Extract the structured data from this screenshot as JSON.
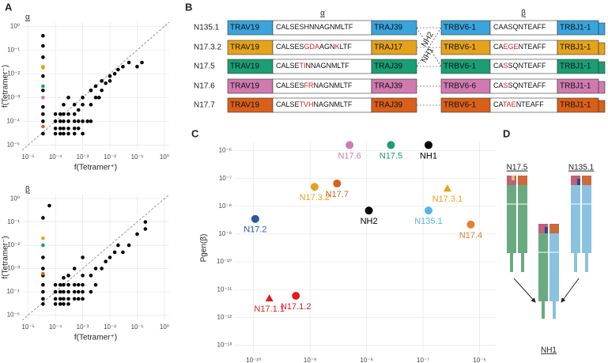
{
  "panel_labels": [
    "A",
    "B",
    "C",
    "D"
  ],
  "chart_data": [
    {
      "type": "scatter",
      "facet": "α",
      "xscale": "log",
      "yscale": "log",
      "x_label": "f(Tetramer⁺)",
      "y_label": "f(Tetramer⁻)",
      "reference_line": "y=x",
      "grid": true,
      "xlim": [
        6e-06,
        1.5
      ],
      "ylim": [
        6e-06,
        1.5
      ],
      "xticks": [
        {
          "value": 1e-05,
          "label": "10⁻⁵"
        },
        {
          "value": 0.0001,
          "label": "10⁻⁴"
        },
        {
          "value": 0.001,
          "label": "10⁻³"
        },
        {
          "value": 0.01,
          "label": "10⁻²"
        },
        {
          "value": 0.1,
          "label": "10⁻¹"
        },
        {
          "value": 1,
          "label": "10⁰"
        }
      ],
      "yticks": [
        {
          "value": 1e-05,
          "label": "10⁻⁵"
        },
        {
          "value": 0.0001,
          "label": "10⁻⁴"
        },
        {
          "value": 0.001,
          "label": "10⁻³"
        },
        {
          "value": 0.01,
          "label": "10⁻²"
        },
        {
          "value": 0.1,
          "label": "10⁻¹"
        },
        {
          "value": 1,
          "label": "10⁰"
        }
      ],
      "series": [
        {
          "color": "#000000",
          "x": [
            3.5e-05,
            3.5e-05,
            3.5e-05,
            3.5e-05,
            3.5e-05,
            3.5e-05,
            3.5e-05,
            3.5e-05,
            3.5e-05,
            0.0001,
            0.0001,
            0.0001,
            0.0001,
            0.00015,
            0.00015,
            0.00015,
            0.00015,
            0.0002,
            0.0002,
            0.0002,
            0.0002,
            0.0002,
            0.0003,
            0.0003,
            0.0003,
            0.0003,
            0.0003,
            0.0005,
            0.0005,
            0.0005,
            0.0005,
            0.0005,
            0.0007,
            0.0007,
            0.0007,
            0.001,
            0.001,
            0.001,
            0.001,
            0.0015,
            0.002,
            0.002,
            0.003,
            0.003,
            0.005,
            0.005,
            0.007,
            0.01,
            0.01,
            0.015,
            0.02,
            0.03,
            0.05,
            0.1,
            0.15,
            0.002,
            0.004
          ],
          "values": [
            0.4,
            0.15,
            0.05,
            0.008,
            0.002,
            0.0004,
            0.0002,
            0.0001,
            3e-05,
            3e-05,
            5e-05,
            0.0001,
            0.0002,
            3e-05,
            5e-05,
            0.0001,
            0.0002,
            3e-05,
            5e-05,
            0.0001,
            0.0002,
            0.0005,
            3e-05,
            5e-05,
            0.0001,
            0.0002,
            0.001,
            3e-05,
            5e-05,
            0.0001,
            0.0002,
            0.0005,
            5e-05,
            0.0001,
            0.0003,
            3e-05,
            0.0001,
            0.0005,
            0.001,
            0.0001,
            0.0005,
            0.002,
            0.001,
            0.003,
            0.002,
            0.005,
            0.004,
            0.008,
            0.005,
            0.01,
            0.015,
            0.02,
            0.03,
            0.02,
            0.03,
            0.0001,
            0.001
          ]
        },
        {
          "colors": [
            "#e5a31b",
            "#e5a31b",
            "#1a9e74",
            "#d07ab0",
            "#d9601a"
          ],
          "x": [
            3.5e-05,
            3.5e-05,
            3.5e-05,
            3.5e-05,
            3.5e-05
          ],
          "values": [
            0.02,
            0.018,
            0.003,
            0.001,
            6e-05
          ]
        }
      ]
    },
    {
      "type": "scatter",
      "facet": "β",
      "xscale": "log",
      "yscale": "log",
      "x_label": "f(Tetramer⁺)",
      "y_label": "f(Tetramer⁻)",
      "reference_line": "y=x",
      "grid": true,
      "xlim": [
        6e-06,
        1.5
      ],
      "ylim": [
        6e-06,
        1.5
      ],
      "xticks": [
        {
          "value": 1e-05,
          "label": "10⁻⁵"
        },
        {
          "value": 0.0001,
          "label": "10⁻⁴"
        },
        {
          "value": 0.001,
          "label": "10⁻³"
        },
        {
          "value": 0.01,
          "label": "10⁻²"
        },
        {
          "value": 0.1,
          "label": "10⁻¹"
        },
        {
          "value": 1,
          "label": "10⁰"
        }
      ],
      "yticks": [
        {
          "value": 1e-05,
          "label": "10⁻⁵"
        },
        {
          "value": 0.0001,
          "label": "10⁻⁴"
        },
        {
          "value": 0.001,
          "label": "10⁻³"
        },
        {
          "value": 0.01,
          "label": "10⁻²"
        },
        {
          "value": 0.1,
          "label": "10⁻¹"
        },
        {
          "value": 1,
          "label": "10⁰"
        }
      ],
      "series": [
        {
          "color": "#000000",
          "x": [
            3.5e-05,
            3.5e-05,
            3.5e-05,
            3.5e-05,
            3.5e-05,
            3.5e-05,
            3.5e-05,
            3.5e-05,
            6e-05,
            0.0001,
            0.0001,
            0.0001,
            0.0001,
            0.00015,
            0.00015,
            0.00015,
            0.00015,
            0.0002,
            0.0002,
            0.0002,
            0.0002,
            0.0002,
            0.0003,
            0.0003,
            0.0003,
            0.0003,
            0.0003,
            0.0005,
            0.0005,
            0.0005,
            0.0005,
            0.0007,
            0.0007,
            0.0007,
            0.001,
            0.001,
            0.001,
            0.001,
            0.002,
            0.003,
            0.005,
            0.007,
            0.01,
            0.015,
            0.02,
            0.03,
            0.05,
            0.1,
            0.2,
            0.2,
            0.003,
            0.002,
            0.001
          ],
          "values": [
            0.15,
            0.003,
            0.001,
            0.0005,
            0.0002,
            0.0001,
            5e-05,
            3e-05,
            0.5,
            3e-05,
            5e-05,
            0.0001,
            0.0002,
            3e-05,
            5e-05,
            0.0001,
            0.0002,
            3e-05,
            5e-05,
            0.0001,
            0.0002,
            0.0004,
            3e-05,
            5e-05,
            0.0001,
            0.0002,
            0.0005,
            5e-05,
            0.0001,
            0.0002,
            0.001,
            5e-05,
            0.0001,
            0.0002,
            5e-05,
            0.0001,
            0.0002,
            0.0005,
            0.0005,
            0.001,
            0.001,
            0.002,
            0.003,
            0.005,
            0.01,
            0.005,
            0.01,
            0.03,
            0.05,
            0.1,
            0.0002,
            0.0001,
            0.003
          ]
        },
        {
          "colors": [
            "#e5a31b",
            "#1a9e74",
            "#d9601a"
          ],
          "x": [
            3.5e-05,
            3.5e-05,
            3.5e-05
          ],
          "values": [
            0.02,
            0.01,
            0.0006
          ]
        }
      ]
    },
    {
      "type": "scatter",
      "xscale": "log",
      "yscale": "log",
      "grid": true,
      "x_label": "Pgen(α)",
      "y_label": "Pgen(β)",
      "xlim": [
        4.5e-11,
        2e-06
      ],
      "ylim": [
        5e-14,
        2e-06
      ],
      "xticks": [
        {
          "value": 1e-10,
          "label": "10⁻¹⁰"
        },
        {
          "value": 1e-09,
          "label": "10⁻⁹"
        },
        {
          "value": 1e-08,
          "label": "10⁻⁸"
        },
        {
          "value": 1e-07,
          "label": "10⁻⁷"
        },
        {
          "value": 1e-06,
          "label": "10⁻⁶"
        }
      ],
      "yticks": [
        {
          "value": 1e-13,
          "label": "10⁻¹³"
        },
        {
          "value": 1e-12,
          "label": "10⁻¹²"
        },
        {
          "value": 1e-11,
          "label": "10⁻¹¹"
        },
        {
          "value": 1e-10,
          "label": "10⁻¹⁰"
        },
        {
          "value": 1e-09,
          "label": "10⁻⁹"
        },
        {
          "value": 1e-08,
          "label": "10⁻⁸"
        },
        {
          "value": 1e-07,
          "label": "10⁻⁷"
        },
        {
          "value": 1e-06,
          "label": "10⁻⁶"
        }
      ],
      "series": [
        {
          "name": "N17.6",
          "color": "#d07ab0",
          "shape": "circle",
          "x": [
            5e-09
          ],
          "values": [
            1.6e-06
          ]
        },
        {
          "name": "N17.5",
          "color": "#1a9e74",
          "shape": "circle",
          "x": [
            2.7e-08
          ],
          "values": [
            1.6e-06
          ]
        },
        {
          "name": "NH1",
          "color": "#000000",
          "shape": "circle",
          "x": [
            1.25e-07
          ],
          "values": [
            1.6e-06
          ]
        },
        {
          "name": "N17.3.2",
          "color": "#e5a31b",
          "shape": "circle",
          "x": [
            1.2e-09
          ],
          "values": [
            5e-08
          ]
        },
        {
          "name": "N17.7",
          "color": "#d9601a",
          "shape": "circle",
          "x": [
            3e-09
          ],
          "values": [
            6.6e-08
          ]
        },
        {
          "name": "N17.3.1",
          "color": "#e5a31b",
          "shape": "triangle",
          "x": [
            2.7e-07
          ],
          "values": [
            4.4e-08
          ]
        },
        {
          "name": "NH2",
          "color": "#000000",
          "shape": "circle",
          "x": [
            1.1e-08
          ],
          "values": [
            7e-09
          ]
        },
        {
          "name": "N135.1",
          "color": "#56b4e9",
          "shape": "circle",
          "x": [
            1.25e-07
          ],
          "values": [
            7e-09
          ]
        },
        {
          "name": "N17.2",
          "color": "#2a5aa8",
          "shape": "circle",
          "x": [
            1.07e-10
          ],
          "values": [
            3.5e-09
          ]
        },
        {
          "name": "N17.4",
          "color": "#e87d2e",
          "shape": "circle",
          "x": [
            7e-07
          ],
          "values": [
            2.2e-09
          ]
        },
        {
          "name": "N17.1.2",
          "color": "#e31a1c",
          "shape": "circle",
          "x": [
            5.6e-10
          ],
          "values": [
            6e-12
          ]
        },
        {
          "name": "N17.1.1",
          "color": "#e31a1c",
          "shape": "triangle",
          "x": [
            1.9e-10
          ],
          "values": [
            4.9e-12
          ]
        }
      ]
    }
  ],
  "table": {
    "headers": [
      "α",
      "β"
    ],
    "annotations": [
      "NH2",
      "NH1"
    ],
    "rows": [
      {
        "name": "N135.1",
        "color": "#3aa4dd",
        "trav": "TRAV19",
        "cdr3_alpha": [
          "CALSESHNNAGNMLTF"
        ],
        "traj": "TRAJ39",
        "trbv": "TRBV6-1",
        "cdr3_beta": [
          "CAASQNTEAFF"
        ],
        "trbj": "TRBJ1-1"
      },
      {
        "name": "N17.3.2",
        "color": "#e5a31b",
        "trav": "TRAV19",
        "cdr3_alpha": [
          "CALSES",
          "GDA",
          "AGN",
          "K",
          "LTF"
        ],
        "traj": "TRAJ17",
        "trbv": "TRBV6-1",
        "cdr3_beta": [
          "CA",
          "EGE",
          "NTEAFF"
        ],
        "trbj": "TRBJ1-1"
      },
      {
        "name": "N17.5",
        "color": "#1a9e74",
        "trav": "TRAV19",
        "cdr3_alpha": [
          "CALSE",
          "TI",
          "NNAGNMLTF"
        ],
        "traj": "TRAJ39",
        "trbv": "TRBV6-1",
        "cdr3_beta": [
          "CA",
          "S",
          "SQNTEAFF"
        ],
        "trbj": "TRBJ1-1"
      },
      {
        "name": "N17.6",
        "color": "#d07ab0",
        "trav": "TRAV19",
        "cdr3_alpha": [
          "CALSES",
          "FR",
          "NAGNMLTF"
        ],
        "traj": "TRAJ39",
        "trbv": "TRBV6-6",
        "cdr3_beta": [
          "CA",
          "S",
          "SQNTEAFF"
        ],
        "trbj": "TRBJ1-1"
      },
      {
        "name": "N17.7",
        "color": "#d9601a",
        "trav": "TRAV19",
        "cdr3_alpha": [
          "CALSE",
          "TVH",
          "NAGNMLTF"
        ],
        "traj": "TRAJ39",
        "trbv": "TRBV6-1",
        "cdr3_beta": [
          "CA",
          "TAE",
          "NTEAFF"
        ],
        "trbj": "TRBJ1-1"
      }
    ]
  },
  "diagram": {
    "labels": [
      "N17.5",
      "N135.1",
      "NH1"
    ]
  }
}
